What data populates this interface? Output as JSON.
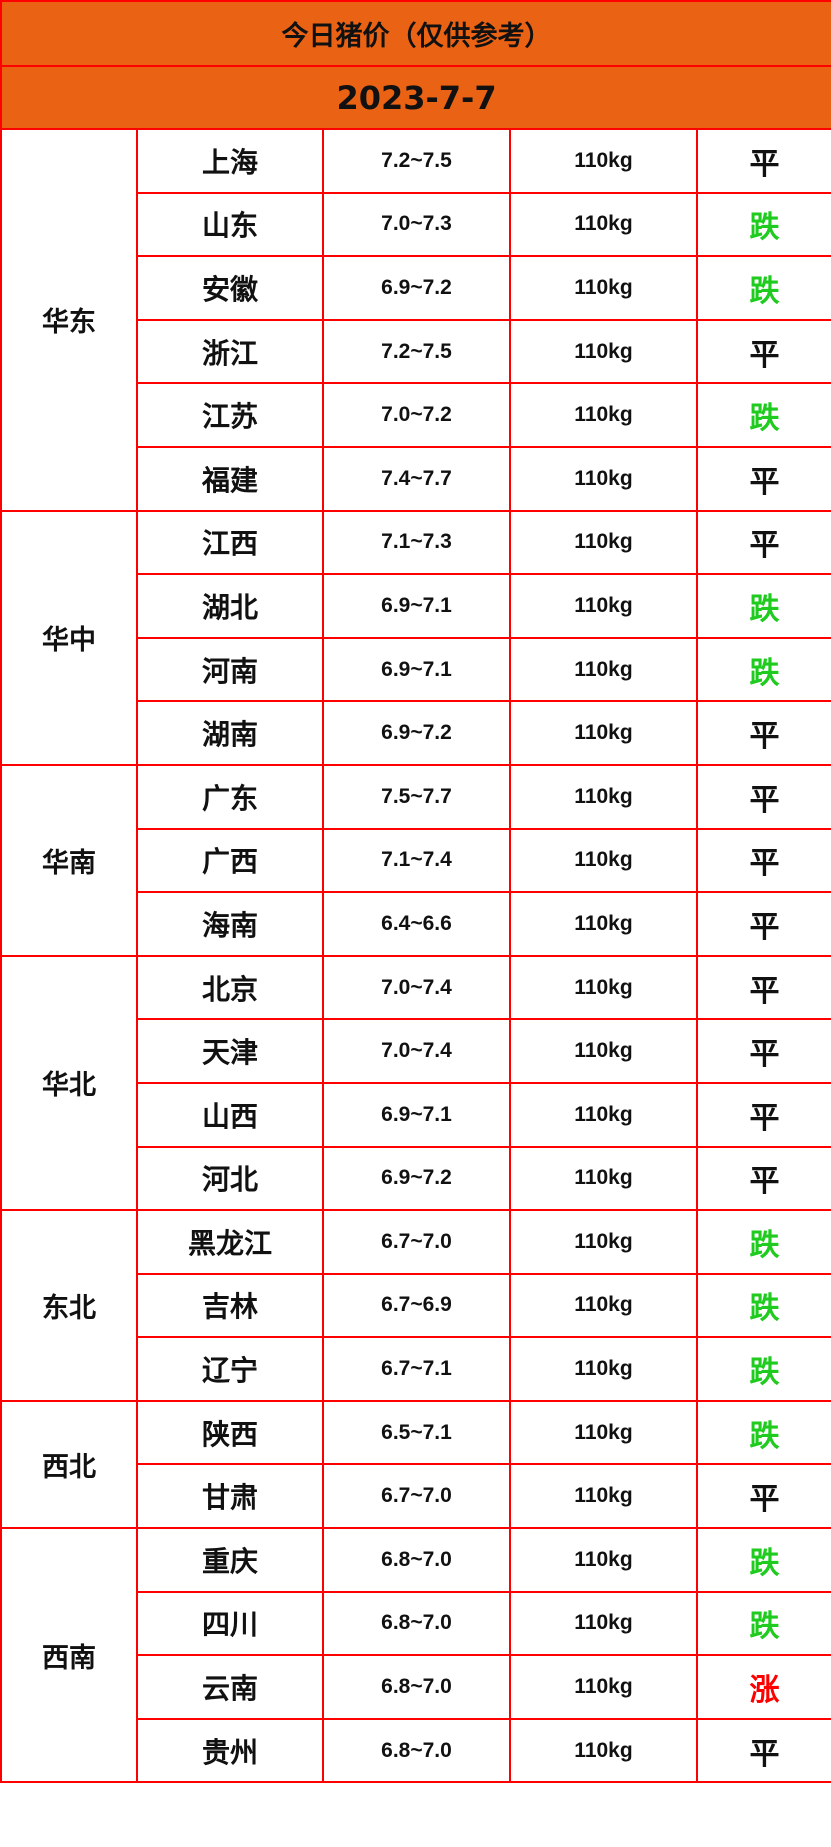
{
  "title": "今日猪价（仅供参考）",
  "date": "2023-7-7",
  "colors": {
    "header_bg": "#ea6214",
    "border": "#ff0000",
    "down": "#1ecb1e",
    "up": "#ff0000",
    "flat": "#111111"
  },
  "regions": [
    {
      "name": "华东",
      "rows": [
        {
          "province": "上海",
          "price": "7.2~7.5",
          "weight": "110kg",
          "trend": "平"
        },
        {
          "province": "山东",
          "price": "7.0~7.3",
          "weight": "110kg",
          "trend": "跌"
        },
        {
          "province": "安徽",
          "price": "6.9~7.2",
          "weight": "110kg",
          "trend": "跌"
        },
        {
          "province": "浙江",
          "price": "7.2~7.5",
          "weight": "110kg",
          "trend": "平"
        },
        {
          "province": "江苏",
          "price": "7.0~7.2",
          "weight": "110kg",
          "trend": "跌"
        },
        {
          "province": "福建",
          "price": "7.4~7.7",
          "weight": "110kg",
          "trend": "平"
        }
      ]
    },
    {
      "name": "华中",
      "rows": [
        {
          "province": "江西",
          "price": "7.1~7.3",
          "weight": "110kg",
          "trend": "平"
        },
        {
          "province": "湖北",
          "price": "6.9~7.1",
          "weight": "110kg",
          "trend": "跌"
        },
        {
          "province": "河南",
          "price": "6.9~7.1",
          "weight": "110kg",
          "trend": "跌"
        },
        {
          "province": "湖南",
          "price": "6.9~7.2",
          "weight": "110kg",
          "trend": "平"
        }
      ]
    },
    {
      "name": "华南",
      "rows": [
        {
          "province": "广东",
          "price": "7.5~7.7",
          "weight": "110kg",
          "trend": "平"
        },
        {
          "province": "广西",
          "price": "7.1~7.4",
          "weight": "110kg",
          "trend": "平"
        },
        {
          "province": "海南",
          "price": "6.4~6.6",
          "weight": "110kg",
          "trend": "平"
        }
      ]
    },
    {
      "name": "华北",
      "rows": [
        {
          "province": "北京",
          "price": "7.0~7.4",
          "weight": "110kg",
          "trend": "平"
        },
        {
          "province": "天津",
          "price": "7.0~7.4",
          "weight": "110kg",
          "trend": "平"
        },
        {
          "province": "山西",
          "price": "6.9~7.1",
          "weight": "110kg",
          "trend": "平"
        },
        {
          "province": "河北",
          "price": "6.9~7.2",
          "weight": "110kg",
          "trend": "平"
        }
      ]
    },
    {
      "name": "东北",
      "rows": [
        {
          "province": "黑龙江",
          "price": "6.7~7.0",
          "weight": "110kg",
          "trend": "跌"
        },
        {
          "province": "吉林",
          "price": "6.7~6.9",
          "weight": "110kg",
          "trend": "跌"
        },
        {
          "province": "辽宁",
          "price": "6.7~7.1",
          "weight": "110kg",
          "trend": "跌"
        }
      ]
    },
    {
      "name": "西北",
      "rows": [
        {
          "province": "陕西",
          "price": "6.5~7.1",
          "weight": "110kg",
          "trend": "跌"
        },
        {
          "province": "甘肃",
          "price": "6.7~7.0",
          "weight": "110kg",
          "trend": "平"
        }
      ]
    },
    {
      "name": "西南",
      "rows": [
        {
          "province": "重庆",
          "price": "6.8~7.0",
          "weight": "110kg",
          "trend": "跌"
        },
        {
          "province": "四川",
          "price": "6.8~7.0",
          "weight": "110kg",
          "trend": "跌"
        },
        {
          "province": "云南",
          "price": "6.8~7.0",
          "weight": "110kg",
          "trend": "涨"
        },
        {
          "province": "贵州",
          "price": "6.8~7.0",
          "weight": "110kg",
          "trend": "平"
        }
      ]
    }
  ]
}
